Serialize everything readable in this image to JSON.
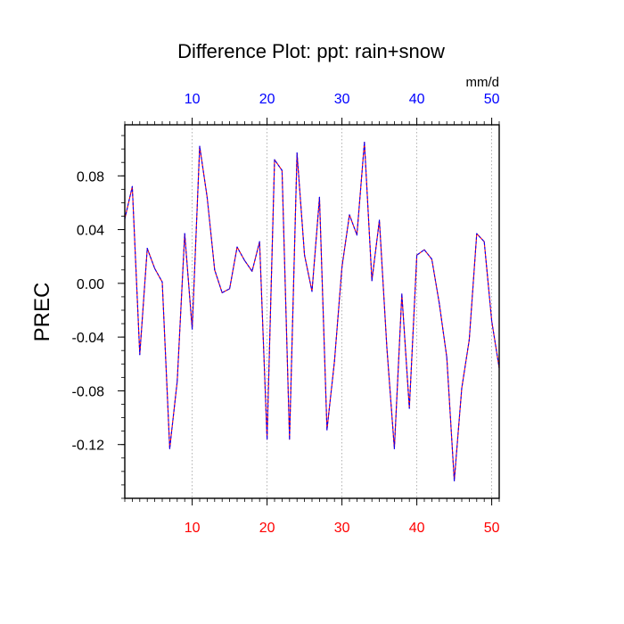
{
  "chart_data": {
    "type": "line",
    "title": "Difference Plot: ppt: rain+snow",
    "units_label": "mm/d",
    "ylabel": "PREC",
    "xlabel": "",
    "xlim": [
      1,
      51
    ],
    "ylim": [
      -0.16,
      0.118
    ],
    "x_ticks": [
      10,
      20,
      30,
      40,
      50
    ],
    "x_minor_step": 1,
    "y_ticks": [
      0.08,
      0.04,
      0.0,
      -0.04,
      -0.08,
      -0.12
    ],
    "y_tick_labels": [
      "0.08",
      "0.04",
      "0.00",
      "-0.04",
      "-0.08",
      "-0.12"
    ],
    "y_minor_step": 0.01,
    "top_tick_color": "#0000ff",
    "bottom_tick_color": "#ff0000",
    "grid_color": "#a0a0a0",
    "series": [
      {
        "colors": [
          "#ff0000",
          "#0000ff"
        ],
        "x": [
          1,
          2,
          3,
          4,
          5,
          6,
          7,
          8,
          9,
          10,
          11,
          12,
          13,
          14,
          15,
          16,
          17,
          18,
          19,
          20,
          21,
          22,
          23,
          24,
          25,
          26,
          27,
          28,
          29,
          30,
          31,
          32,
          33,
          34,
          35,
          36,
          37,
          38,
          39,
          40,
          41,
          42,
          43,
          44,
          45,
          46,
          47,
          48,
          49,
          50,
          51
        ],
        "values": [
          0.048,
          0.072,
          -0.053,
          0.026,
          0.011,
          0.001,
          -0.123,
          -0.073,
          0.037,
          -0.034,
          0.102,
          0.064,
          0.01,
          -0.007,
          -0.004,
          0.027,
          0.017,
          0.009,
          0.031,
          -0.116,
          0.092,
          0.084,
          -0.116,
          0.097,
          0.021,
          -0.006,
          0.064,
          -0.109,
          -0.058,
          0.012,
          0.051,
          0.036,
          0.105,
          0.002,
          0.047,
          -0.048,
          -0.123,
          -0.008,
          -0.093,
          0.021,
          0.025,
          0.018,
          -0.015,
          -0.055,
          -0.147,
          -0.078,
          -0.042,
          0.037,
          0.031,
          -0.028,
          -0.063
        ]
      }
    ]
  }
}
